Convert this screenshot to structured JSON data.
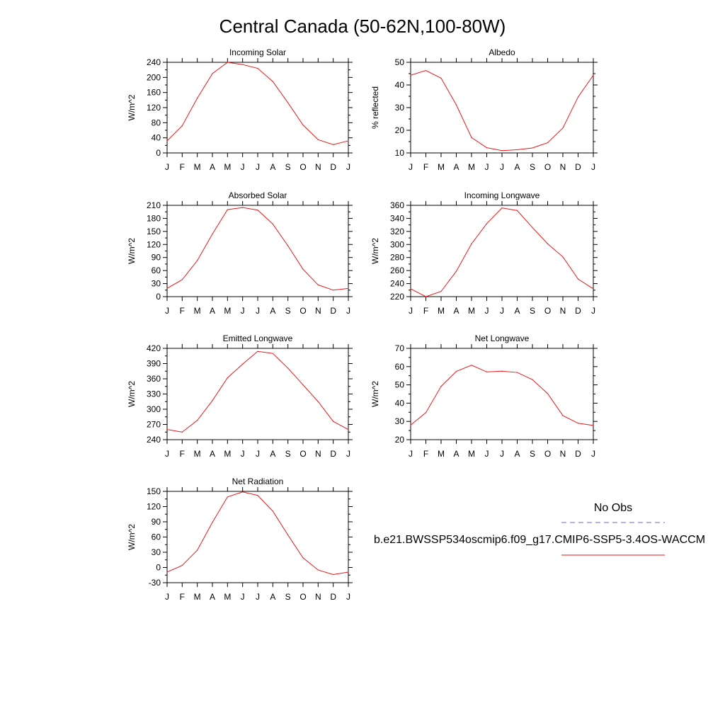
{
  "title": "Central Canada (50-62N,100-80W)",
  "colors": {
    "model": "#e8191c",
    "obs": "#6b6bd6"
  },
  "months": [
    "J",
    "F",
    "M",
    "A",
    "M",
    "J",
    "J",
    "A",
    "S",
    "O",
    "N",
    "D",
    "J"
  ],
  "legend": {
    "obs_label": "No Obs",
    "model_label": "b.e21.BWSSP534oscmip6.f09_g17.CMIP6-SSP5-3.4OS-WACCM"
  },
  "chart_data": [
    {
      "type": "line",
      "title": "Incoming Solar",
      "ylabel": "W/m^2",
      "ylim": [
        0,
        240
      ],
      "yticks": [
        0,
        40,
        80,
        120,
        160,
        200,
        240
      ],
      "x": [
        "J",
        "F",
        "M",
        "A",
        "M",
        "J",
        "J",
        "A",
        "S",
        "O",
        "N",
        "D",
        "J"
      ],
      "series": [
        {
          "values": [
            32,
            72,
            145,
            210,
            240,
            234,
            224,
            189,
            133,
            74,
            35,
            22,
            32
          ]
        }
      ]
    },
    {
      "type": "line",
      "title": "Albedo",
      "ylabel": "% reflected",
      "ylim": [
        10,
        50
      ],
      "yticks": [
        10,
        20,
        30,
        40,
        50
      ],
      "x": [
        "J",
        "F",
        "M",
        "A",
        "M",
        "J",
        "J",
        "A",
        "S",
        "O",
        "N",
        "D",
        "J"
      ],
      "series": [
        {
          "values": [
            44.3,
            46.4,
            43.0,
            31.2,
            16.8,
            12.3,
            11.0,
            11.4,
            12.2,
            14.5,
            21.0,
            34.7,
            44.3
          ]
        }
      ]
    },
    {
      "type": "line",
      "title": "Absorbed Solar",
      "ylabel": "W/m^2",
      "ylim": [
        0,
        210
      ],
      "yticks": [
        0,
        30,
        60,
        90,
        120,
        150,
        180,
        210
      ],
      "x": [
        "J",
        "F",
        "M",
        "A",
        "M",
        "J",
        "J",
        "A",
        "S",
        "O",
        "N",
        "D",
        "J"
      ],
      "series": [
        {
          "values": [
            19,
            39,
            83,
            144,
            200,
            205,
            199,
            167,
            117,
            63,
            27,
            15,
            19
          ]
        }
      ]
    },
    {
      "type": "line",
      "title": "Incoming Longwave",
      "ylabel": "W/m^2",
      "ylim": [
        220,
        360
      ],
      "yticks": [
        220,
        240,
        260,
        280,
        300,
        320,
        340,
        360
      ],
      "x": [
        "J",
        "F",
        "M",
        "A",
        "M",
        "J",
        "J",
        "A",
        "S",
        "O",
        "N",
        "D",
        "J"
      ],
      "series": [
        {
          "values": [
            232,
            220,
            228,
            259,
            301,
            332,
            356,
            352,
            326,
            301,
            281,
            247,
            232
          ]
        }
      ]
    },
    {
      "type": "line",
      "title": "Emitted Longwave",
      "ylabel": "W/m^2",
      "ylim": [
        240,
        420
      ],
      "yticks": [
        240,
        270,
        300,
        330,
        360,
        390,
        420
      ],
      "x": [
        "J",
        "F",
        "M",
        "A",
        "M",
        "J",
        "J",
        "A",
        "S",
        "O",
        "N",
        "D",
        "J"
      ],
      "series": [
        {
          "values": [
            260,
            255,
            278,
            317,
            362,
            389,
            414,
            410,
            381,
            348,
            315,
            276,
            260
          ]
        }
      ]
    },
    {
      "type": "line",
      "title": "Net Longwave",
      "ylabel": "W/m^2",
      "ylim": [
        20,
        70
      ],
      "yticks": [
        20,
        30,
        40,
        50,
        60,
        70
      ],
      "x": [
        "J",
        "F",
        "M",
        "A",
        "M",
        "J",
        "J",
        "A",
        "S",
        "O",
        "N",
        "D",
        "J"
      ],
      "series": [
        {
          "values": [
            28.0,
            34.8,
            49.2,
            57.4,
            60.8,
            57.1,
            57.5,
            56.8,
            52.9,
            45.2,
            33.2,
            29.0,
            27.8
          ]
        }
      ]
    },
    {
      "type": "line",
      "title": "Net Radiation",
      "ylabel": "W/m^2",
      "ylim": [
        -30,
        150
      ],
      "yticks": [
        -30,
        0,
        30,
        60,
        90,
        120,
        150
      ],
      "x": [
        "J",
        "F",
        "M",
        "A",
        "M",
        "J",
        "J",
        "A",
        "S",
        "O",
        "N",
        "D",
        "J"
      ],
      "series": [
        {
          "values": [
            -9,
            4,
            34,
            89,
            139,
            149,
            142,
            111,
            64,
            19,
            -5,
            -14,
            -9
          ]
        }
      ]
    }
  ]
}
